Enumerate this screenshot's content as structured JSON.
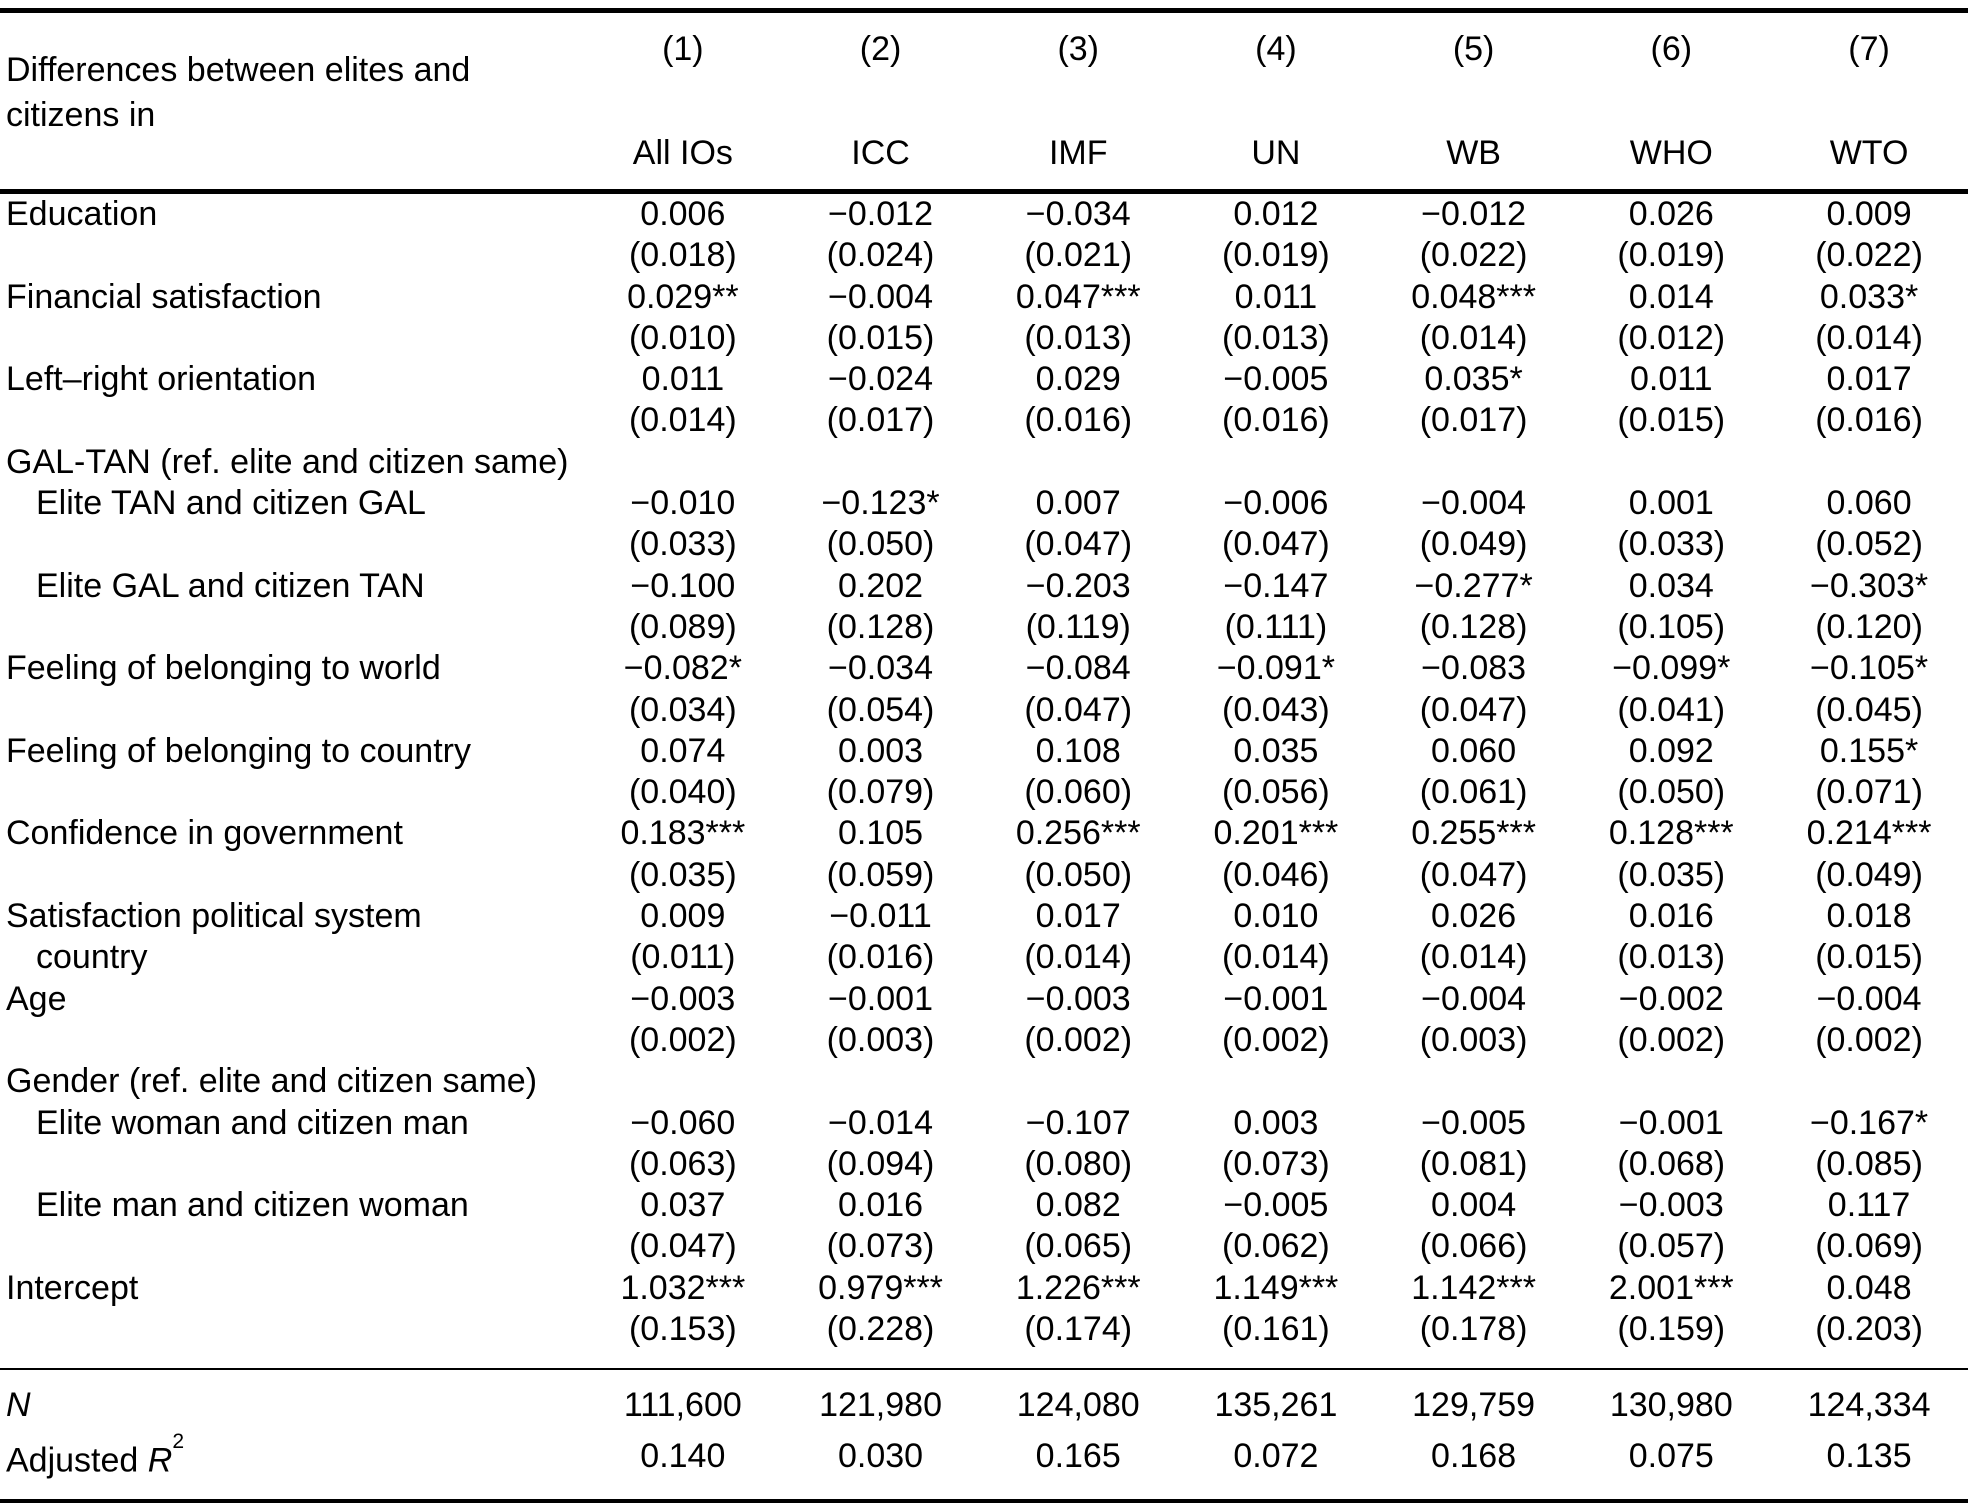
{
  "table": {
    "stub_header": {
      "line1": "Differences between elites and",
      "line2": "citizens in"
    },
    "col_numbers": [
      "(1)",
      "(2)",
      "(3)",
      "(4)",
      "(5)",
      "(6)",
      "(7)"
    ],
    "col_names": [
      "All IOs",
      "ICC",
      "IMF",
      "UN",
      "WB",
      "WHO",
      "WTO"
    ],
    "rows": [
      {
        "type": "var",
        "label": "Education",
        "coefs": [
          "0.006",
          "−0.012",
          "−0.034",
          "0.012",
          "−0.012",
          "0.026",
          "0.009"
        ],
        "ses": [
          "(0.018)",
          "(0.024)",
          "(0.021)",
          "(0.019)",
          "(0.022)",
          "(0.019)",
          "(0.022)"
        ]
      },
      {
        "type": "var",
        "label": "Financial satisfaction",
        "coefs": [
          "0.029**",
          "−0.004",
          "0.047***",
          "0.011",
          "0.048***",
          "0.014",
          "0.033*"
        ],
        "ses": [
          "(0.010)",
          "(0.015)",
          "(0.013)",
          "(0.013)",
          "(0.014)",
          "(0.012)",
          "(0.014)"
        ]
      },
      {
        "type": "var",
        "label": "Left–right orientation",
        "coefs": [
          "0.011",
          "−0.024",
          "0.029",
          "−0.005",
          "0.035*",
          "0.011",
          "0.017"
        ],
        "ses": [
          "(0.014)",
          "(0.017)",
          "(0.016)",
          "(0.016)",
          "(0.017)",
          "(0.015)",
          "(0.016)"
        ]
      },
      {
        "type": "section",
        "label": "GAL-TAN (ref. elite and citizen same)"
      },
      {
        "type": "var",
        "indent": true,
        "label": "Elite TAN and citizen GAL",
        "coefs": [
          "−0.010",
          "−0.123*",
          "0.007",
          "−0.006",
          "−0.004",
          "0.001",
          "0.060"
        ],
        "ses": [
          "(0.033)",
          "(0.050)",
          "(0.047)",
          "(0.047)",
          "(0.049)",
          "(0.033)",
          "(0.052)"
        ]
      },
      {
        "type": "var",
        "indent": true,
        "label": "Elite GAL and citizen TAN",
        "coefs": [
          "−0.100",
          "0.202",
          "−0.203",
          "−0.147",
          "−0.277*",
          "0.034",
          "−0.303*"
        ],
        "ses": [
          "(0.089)",
          "(0.128)",
          "(0.119)",
          "(0.111)",
          "(0.128)",
          "(0.105)",
          "(0.120)"
        ]
      },
      {
        "type": "var",
        "label": "Feeling of belonging to world",
        "coefs": [
          "−0.082*",
          "−0.034",
          "−0.084",
          "−0.091*",
          "−0.083",
          "−0.099*",
          "−0.105*"
        ],
        "ses": [
          "(0.034)",
          "(0.054)",
          "(0.047)",
          "(0.043)",
          "(0.047)",
          "(0.041)",
          "(0.045)"
        ]
      },
      {
        "type": "var",
        "label": "Feeling of belonging to country",
        "coefs": [
          "0.074",
          "0.003",
          "0.108",
          "0.035",
          "0.060",
          "0.092",
          "0.155*"
        ],
        "ses": [
          "(0.040)",
          "(0.079)",
          "(0.060)",
          "(0.056)",
          "(0.061)",
          "(0.050)",
          "(0.071)"
        ]
      },
      {
        "type": "var",
        "label": "Confidence in government",
        "coefs": [
          "0.183***",
          "0.105",
          "0.256***",
          "0.201***",
          "0.255***",
          "0.128***",
          "0.214***"
        ],
        "ses": [
          "(0.035)",
          "(0.059)",
          "(0.050)",
          "(0.046)",
          "(0.047)",
          "(0.035)",
          "(0.049)"
        ]
      },
      {
        "type": "var",
        "label": "Satisfaction political system",
        "label2": "country",
        "coefs": [
          "0.009",
          "−0.011",
          "0.017",
          "0.010",
          "0.026",
          "0.016",
          "0.018"
        ],
        "ses": [
          "(0.011)",
          "(0.016)",
          "(0.014)",
          "(0.014)",
          "(0.014)",
          "(0.013)",
          "(0.015)"
        ]
      },
      {
        "type": "var",
        "label": "Age",
        "coefs": [
          "−0.003",
          "−0.001",
          "−0.003",
          "−0.001",
          "−0.004",
          "−0.002",
          "−0.004"
        ],
        "ses": [
          "(0.002)",
          "(0.003)",
          "(0.002)",
          "(0.002)",
          "(0.003)",
          "(0.002)",
          "(0.002)"
        ]
      },
      {
        "type": "section",
        "label": "Gender (ref. elite and citizen same)"
      },
      {
        "type": "var",
        "indent": true,
        "label": "Elite woman and citizen man",
        "coefs": [
          "−0.060",
          "−0.014",
          "−0.107",
          "0.003",
          "−0.005",
          "−0.001",
          "−0.167*"
        ],
        "ses": [
          "(0.063)",
          "(0.094)",
          "(0.080)",
          "(0.073)",
          "(0.081)",
          "(0.068)",
          "(0.085)"
        ]
      },
      {
        "type": "var",
        "indent": true,
        "label": "Elite man and citizen woman",
        "coefs": [
          "0.037",
          "0.016",
          "0.082",
          "−0.005",
          "0.004",
          "−0.003",
          "0.117"
        ],
        "ses": [
          "(0.047)",
          "(0.073)",
          "(0.065)",
          "(0.062)",
          "(0.066)",
          "(0.057)",
          "(0.069)"
        ]
      },
      {
        "type": "var",
        "label": "Intercept",
        "coefs": [
          "1.032***",
          "0.979***",
          "1.226***",
          "1.149***",
          "1.142***",
          "2.001***",
          "0.048"
        ],
        "ses": [
          "(0.153)",
          "(0.228)",
          "(0.174)",
          "(0.161)",
          "(0.178)",
          "(0.159)",
          "(0.203)"
        ]
      }
    ],
    "stats": {
      "n": {
        "label": "N",
        "values": [
          "111,600",
          "121,980",
          "124,080",
          "135,261",
          "129,759",
          "130,980",
          "124,334"
        ]
      },
      "adj_r2": {
        "label_prefix": "Adjusted ",
        "symbol": "R",
        "sup": "2",
        "values": [
          "0.140",
          "0.030",
          "0.165",
          "0.072",
          "0.168",
          "0.075",
          "0.135"
        ]
      }
    }
  }
}
